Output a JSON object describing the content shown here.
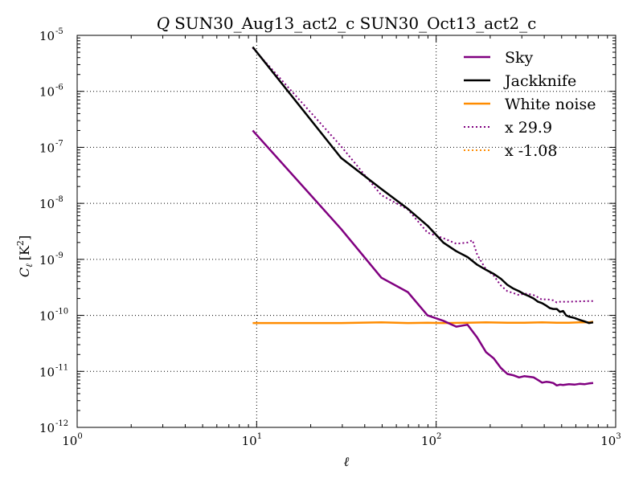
{
  "chart_data": {
    "type": "line",
    "title_symbol": "Q",
    "title": "SUN30_Aug13_act2_c SUN30_Oct13_act2_c",
    "xlabel": "ℓ",
    "ylabel_main": "C",
    "ylabel_sub": "ℓ",
    "ylabel_unit": "[K",
    "ylabel_unit_exp": "2",
    "ylabel_unit_close": "]",
    "x_scale": "log",
    "y_scale": "log",
    "xlim": [
      1,
      1000
    ],
    "ylim": [
      1e-12,
      1e-05
    ],
    "grid": true,
    "legend_position": "top-right",
    "x_ticks": [
      {
        "value": 1,
        "base": "10",
        "exp": "0"
      },
      {
        "value": 10,
        "base": "10",
        "exp": "1"
      },
      {
        "value": 100,
        "base": "10",
        "exp": "2"
      },
      {
        "value": 1000,
        "base": "10",
        "exp": "3"
      }
    ],
    "y_ticks": [
      {
        "value": 1e-12,
        "base": "10",
        "exp": "-12"
      },
      {
        "value": 1e-11,
        "base": "10",
        "exp": "-11"
      },
      {
        "value": 1e-10,
        "base": "10",
        "exp": "-10"
      },
      {
        "value": 1e-09,
        "base": "10",
        "exp": "-9"
      },
      {
        "value": 1e-08,
        "base": "10",
        "exp": "-8"
      },
      {
        "value": 1e-07,
        "base": "10",
        "exp": "-7"
      },
      {
        "value": 1e-06,
        "base": "10",
        "exp": "-6"
      },
      {
        "value": 1e-05,
        "base": "10",
        "exp": "-5"
      }
    ],
    "series": [
      {
        "name": "Sky",
        "color": "#800080",
        "style": "solid",
        "points": [
          [
            9.5,
            2e-07
          ],
          [
            29.5,
            3.5e-09
          ],
          [
            49.5,
            4.7e-10
          ],
          [
            69.5,
            2.6e-10
          ],
          [
            89.5,
            1e-10
          ],
          [
            109.5,
            8e-11
          ],
          [
            129.5,
            6.3e-11
          ],
          [
            149.5,
            6.8e-11
          ],
          [
            169.5,
            4e-11
          ],
          [
            189.5,
            2.2e-11
          ],
          [
            209.5,
            1.7e-11
          ],
          [
            229.5,
            1.15e-11
          ],
          [
            249.5,
            9e-12
          ],
          [
            269.5,
            8.5e-12
          ],
          [
            289.5,
            7.8e-12
          ],
          [
            309.5,
            8.2e-12
          ],
          [
            329.5,
            8e-12
          ],
          [
            349.5,
            7.8e-12
          ],
          [
            369.5,
            7e-12
          ],
          [
            389.5,
            6.3e-12
          ],
          [
            409.5,
            6.5e-12
          ],
          [
            429.5,
            6.4e-12
          ],
          [
            449.5,
            6.2e-12
          ],
          [
            469.5,
            5.6e-12
          ],
          [
            489.5,
            5.8e-12
          ],
          [
            509.5,
            5.7e-12
          ],
          [
            549.5,
            5.9e-12
          ],
          [
            589.5,
            5.8e-12
          ],
          [
            629.5,
            6e-12
          ],
          [
            669.5,
            5.9e-12
          ],
          [
            709.5,
            6.1e-12
          ],
          [
            749.5,
            6.2e-12
          ]
        ]
      },
      {
        "name": "Jackknife",
        "color": "#000000",
        "style": "solid",
        "points": [
          [
            9.5,
            6.2e-06
          ],
          [
            29.5,
            6.5e-08
          ],
          [
            49.5,
            1.8e-08
          ],
          [
            69.5,
            8e-09
          ],
          [
            89.5,
            4e-09
          ],
          [
            109.5,
            2e-09
          ],
          [
            129.5,
            1.4e-09
          ],
          [
            149.5,
            1.1e-09
          ],
          [
            169.5,
            8e-10
          ],
          [
            189.5,
            6.5e-10
          ],
          [
            209.5,
            5.5e-10
          ],
          [
            229.5,
            4.5e-10
          ],
          [
            249.5,
            3.5e-10
          ],
          [
            269.5,
            3e-10
          ],
          [
            289.5,
            2.7e-10
          ],
          [
            309.5,
            2.4e-10
          ],
          [
            329.5,
            2.2e-10
          ],
          [
            349.5,
            2e-10
          ],
          [
            369.5,
            1.75e-10
          ],
          [
            389.5,
            1.65e-10
          ],
          [
            409.5,
            1.5e-10
          ],
          [
            429.5,
            1.35e-10
          ],
          [
            449.5,
            1.3e-10
          ],
          [
            469.5,
            1.3e-10
          ],
          [
            489.5,
            1.15e-10
          ],
          [
            509.5,
            1.2e-10
          ],
          [
            529.5,
            1e-10
          ],
          [
            549.5,
            9.5e-11
          ],
          [
            589.5,
            9e-11
          ],
          [
            629.5,
            8.3e-11
          ],
          [
            669.5,
            7.8e-11
          ],
          [
            709.5,
            7.3e-11
          ],
          [
            749.5,
            7.5e-11
          ]
        ]
      },
      {
        "name": "White noise",
        "color": "#ff8c00",
        "style": "solid",
        "points": [
          [
            9.5,
            7.3e-11
          ],
          [
            29.5,
            7.3e-11
          ],
          [
            49.5,
            7.5e-11
          ],
          [
            69.5,
            7.3e-11
          ],
          [
            89.5,
            7.4e-11
          ],
          [
            109.5,
            7.3e-11
          ],
          [
            149.5,
            7.4e-11
          ],
          [
            189.5,
            7.5e-11
          ],
          [
            249.5,
            7.4e-11
          ],
          [
            309.5,
            7.4e-11
          ],
          [
            389.5,
            7.5e-11
          ],
          [
            469.5,
            7.4e-11
          ],
          [
            549.5,
            7.4e-11
          ],
          [
            629.5,
            7.5e-11
          ],
          [
            709.5,
            7.5e-11
          ],
          [
            749.5,
            7.7e-11
          ]
        ]
      },
      {
        "name": "x 29.9",
        "color": "#800080",
        "style": "dotted",
        "points": [
          [
            9.5,
            6e-06
          ],
          [
            29.5,
            1.05e-07
          ],
          [
            49.5,
            1.4e-08
          ],
          [
            69.5,
            7.8e-09
          ],
          [
            89.5,
            3e-09
          ],
          [
            109.5,
            2.4e-09
          ],
          [
            129.5,
            1.9e-09
          ],
          [
            149.5,
            2e-09
          ],
          [
            159.5,
            2.2e-09
          ],
          [
            169.5,
            1.2e-09
          ],
          [
            189.5,
            6.6e-10
          ],
          [
            209.5,
            5.1e-10
          ],
          [
            229.5,
            3.4e-10
          ],
          [
            249.5,
            2.7e-10
          ],
          [
            269.5,
            2.5e-10
          ],
          [
            289.5,
            2.3e-10
          ],
          [
            309.5,
            2.45e-10
          ],
          [
            329.5,
            2.4e-10
          ],
          [
            349.5,
            2.3e-10
          ],
          [
            369.5,
            2.1e-10
          ],
          [
            389.5,
            1.9e-10
          ],
          [
            409.5,
            1.95e-10
          ],
          [
            429.5,
            1.9e-10
          ],
          [
            449.5,
            1.85e-10
          ],
          [
            469.5,
            1.7e-10
          ],
          [
            489.5,
            1.75e-10
          ],
          [
            549.5,
            1.75e-10
          ],
          [
            629.5,
            1.78e-10
          ],
          [
            709.5,
            1.8e-10
          ],
          [
            749.5,
            1.8e-10
          ]
        ]
      },
      {
        "name": "x -1.08",
        "color": "#ff8c00",
        "style": "dotted",
        "points": []
      }
    ]
  }
}
